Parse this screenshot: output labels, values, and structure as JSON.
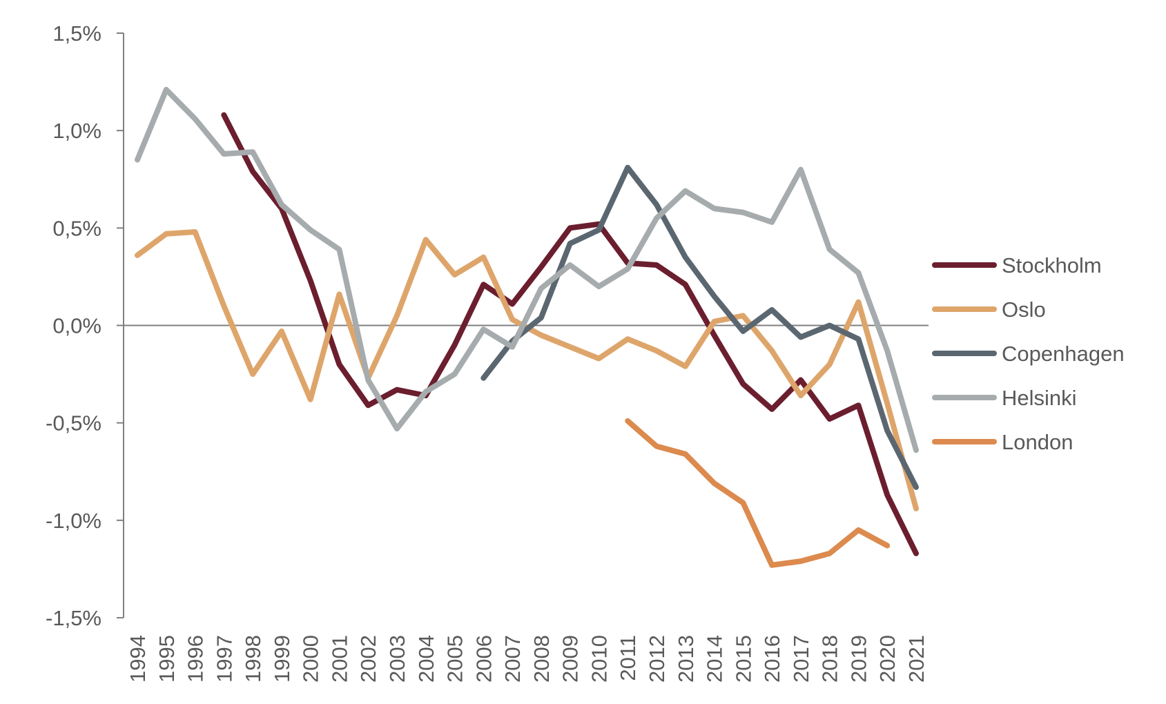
{
  "chart_data": {
    "type": "line",
    "title": "",
    "xlabel": "",
    "ylabel": "",
    "ylim": [
      -1.5,
      1.5
    ],
    "y_ticks": [
      1.5,
      1.0,
      0.5,
      0.0,
      -0.5,
      -1.0,
      -1.5
    ],
    "y_tick_labels": [
      "1,5%",
      "1,0%",
      "0,5%",
      "0,0%",
      "-0,5%",
      "-1,0%",
      "-1,5%"
    ],
    "x": [
      "1994",
      "1995",
      "1996",
      "1997",
      "1998",
      "1999",
      "2000",
      "2001",
      "2002",
      "2003",
      "2004",
      "2005",
      "2006",
      "2007",
      "2008",
      "2009",
      "2010",
      "2011",
      "2012",
      "2013",
      "2014",
      "2015",
      "2016",
      "2017",
      "2018",
      "2019",
      "2020",
      "2021"
    ],
    "grid": false,
    "zero_line": true,
    "legend_position": "right",
    "series": [
      {
        "name": "Stockholm",
        "color": "#6b1e2e",
        "values": [
          null,
          null,
          null,
          1.08,
          0.79,
          0.6,
          0.23,
          -0.2,
          -0.41,
          -0.33,
          -0.36,
          -0.1,
          0.21,
          0.11,
          0.3,
          0.5,
          0.52,
          0.32,
          0.31,
          0.21,
          -0.05,
          -0.3,
          -0.43,
          -0.28,
          -0.48,
          -0.41,
          -0.87,
          -1.17
        ]
      },
      {
        "name": "Oslo",
        "color": "#dea56b",
        "values": [
          0.36,
          0.47,
          0.48,
          0.1,
          -0.25,
          -0.03,
          -0.38,
          0.16,
          -0.27,
          0.05,
          0.44,
          0.26,
          0.35,
          0.03,
          -0.05,
          -0.11,
          -0.17,
          -0.07,
          -0.13,
          -0.21,
          0.02,
          0.05,
          -0.13,
          -0.36,
          -0.2,
          0.12,
          -0.4,
          -0.94
        ]
      },
      {
        "name": "Copenhagen",
        "color": "#5b6770",
        "values": [
          null,
          null,
          null,
          null,
          null,
          null,
          null,
          null,
          null,
          null,
          null,
          null,
          -0.27,
          -0.08,
          0.04,
          0.42,
          0.49,
          0.81,
          0.62,
          0.35,
          0.15,
          -0.03,
          0.08,
          -0.06,
          0.0,
          -0.07,
          -0.54,
          -0.83
        ]
      },
      {
        "name": "Helsinki",
        "color": "#a6abad",
        "values": [
          0.85,
          1.21,
          1.06,
          0.88,
          0.89,
          0.62,
          0.49,
          0.39,
          -0.28,
          -0.53,
          -0.34,
          -0.25,
          -0.02,
          -0.11,
          0.19,
          0.31,
          0.2,
          0.29,
          0.55,
          0.69,
          0.6,
          0.58,
          0.53,
          0.8,
          0.39,
          0.27,
          -0.13,
          -0.64
        ]
      },
      {
        "name": "London",
        "color": "#dc8a4e",
        "values": [
          null,
          null,
          null,
          null,
          null,
          null,
          null,
          null,
          null,
          null,
          null,
          null,
          null,
          null,
          null,
          null,
          null,
          -0.49,
          -0.62,
          -0.66,
          -0.81,
          -0.91,
          -1.23,
          -1.21,
          -1.17,
          -1.05,
          -1.13,
          null
        ]
      }
    ]
  }
}
